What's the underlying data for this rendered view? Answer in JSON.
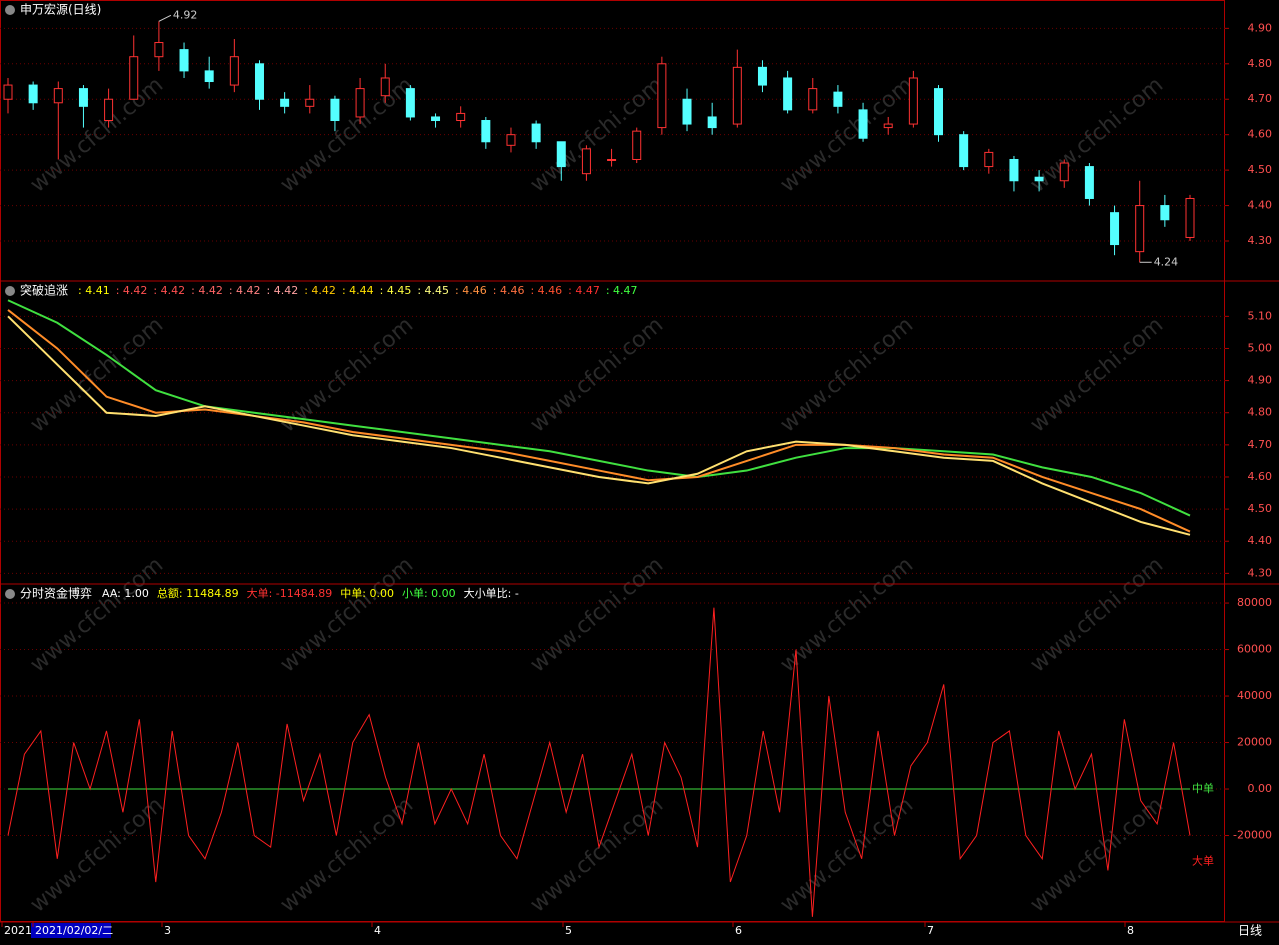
{
  "chart_data": [
    {
      "type": "candlestick",
      "title": "申万宏源(日线)",
      "open": [
        4.7,
        4.74,
        4.69,
        4.73,
        4.64,
        4.7,
        4.82,
        4.84,
        4.78,
        4.74,
        4.8,
        4.7,
        4.68,
        4.7,
        4.65,
        4.71,
        4.73,
        4.65,
        4.64,
        4.64,
        4.57,
        4.63,
        4.58,
        4.49,
        4.53,
        4.53,
        4.62,
        4.7,
        4.65,
        4.63,
        4.79,
        4.76,
        4.67,
        4.72,
        4.67,
        4.62,
        4.63,
        4.73,
        4.6,
        4.51,
        4.53,
        4.48,
        4.47,
        4.51,
        4.38,
        4.27,
        4.4,
        4.31
      ],
      "high": [
        4.76,
        4.75,
        4.75,
        4.74,
        4.73,
        4.88,
        4.92,
        4.86,
        4.82,
        4.87,
        4.81,
        4.72,
        4.74,
        4.71,
        4.76,
        4.8,
        4.74,
        4.66,
        4.68,
        4.65,
        4.62,
        4.64,
        4.58,
        4.57,
        4.56,
        4.62,
        4.82,
        4.73,
        4.69,
        4.84,
        4.81,
        4.78,
        4.76,
        4.74,
        4.69,
        4.65,
        4.78,
        4.74,
        4.61,
        4.56,
        4.54,
        4.5,
        4.53,
        4.52,
        4.4,
        4.47,
        4.43,
        4.43
      ],
      "low": [
        4.66,
        4.67,
        4.53,
        4.62,
        4.62,
        4.7,
        4.78,
        4.76,
        4.73,
        4.72,
        4.67,
        4.66,
        4.66,
        4.61,
        4.63,
        4.69,
        4.64,
        4.62,
        4.62,
        4.56,
        4.55,
        4.56,
        4.47,
        4.47,
        4.51,
        4.52,
        4.6,
        4.61,
        4.6,
        4.62,
        4.72,
        4.66,
        4.66,
        4.66,
        4.58,
        4.6,
        4.62,
        4.58,
        4.5,
        4.49,
        4.44,
        4.44,
        4.45,
        4.4,
        4.26,
        4.24,
        4.34,
        4.3
      ],
      "close": [
        4.74,
        4.69,
        4.73,
        4.68,
        4.7,
        4.82,
        4.86,
        4.78,
        4.75,
        4.82,
        4.7,
        4.68,
        4.7,
        4.64,
        4.73,
        4.76,
        4.65,
        4.64,
        4.66,
        4.58,
        4.6,
        4.58,
        4.51,
        4.56,
        4.53,
        4.61,
        4.8,
        4.63,
        4.62,
        4.79,
        4.74,
        4.67,
        4.73,
        4.68,
        4.59,
        4.63,
        4.76,
        4.6,
        4.51,
        4.55,
        4.47,
        4.47,
        4.52,
        4.42,
        4.29,
        4.4,
        4.36,
        4.42
      ],
      "up_color": "#ff3232",
      "down_color": "#54ffff",
      "max_label": {
        "value": 4.92,
        "label": "4.92"
      },
      "min_label": {
        "value": 4.24,
        "label": "4.24"
      },
      "ylim": [
        4.19,
        4.98
      ],
      "yticks": [
        {
          "value": 4.9,
          "label": "4.90"
        },
        {
          "value": 4.8,
          "label": "4.80"
        },
        {
          "value": 4.7,
          "label": "4.70"
        },
        {
          "value": 4.6,
          "label": "4.60"
        },
        {
          "value": 4.5,
          "label": "4.50"
        },
        {
          "value": 4.4,
          "label": "4.40"
        },
        {
          "value": 4.3,
          "label": "4.30"
        }
      ],
      "grid": true
    },
    {
      "type": "line",
      "title": "突破追涨",
      "header_values": [
        4.41,
        4.42,
        4.42,
        4.42,
        4.42,
        4.42,
        4.42,
        4.44,
        4.45,
        4.45,
        4.46,
        4.46,
        4.46,
        4.47,
        4.47
      ],
      "value_labels": [
        ": 4.41",
        ": 4.42",
        ": 4.42",
        ": 4.42",
        ": 4.42",
        ": 4.42",
        ": 4.42",
        ": 4.44",
        ": 4.45",
        ": 4.45",
        ": 4.46",
        ": 4.46",
        ": 4.46",
        ": 4.47",
        ": 4.47"
      ],
      "header_colors": [
        "#ffff00",
        "#ff5050",
        "#ff5050",
        "#ff6464",
        "#ff8080",
        "#ffa0a0",
        "#ffc800",
        "#ffe000",
        "#ffff40",
        "#ffff80",
        "#ff9040",
        "#ff7040",
        "#ff5030",
        "#ff3030",
        "#40ff40"
      ],
      "series": [
        {
          "color": "#40e040",
          "values": [
            5.15,
            5.08,
            4.98,
            4.87,
            4.82,
            4.8,
            4.78,
            4.76,
            4.74,
            4.72,
            4.7,
            4.68,
            4.65,
            4.62,
            4.6,
            4.62,
            4.66,
            4.69,
            4.69,
            4.68,
            4.67,
            4.63,
            4.6,
            4.55,
            4.48
          ]
        },
        {
          "color": "#ff8c28",
          "values": [
            5.12,
            5.0,
            4.85,
            4.8,
            4.81,
            4.79,
            4.77,
            4.74,
            4.72,
            4.7,
            4.68,
            4.65,
            4.62,
            4.59,
            4.6,
            4.65,
            4.7,
            4.7,
            4.69,
            4.67,
            4.66,
            4.6,
            4.55,
            4.5,
            4.43
          ]
        },
        {
          "color": "#ffe070",
          "values": [
            5.1,
            4.95,
            4.8,
            4.79,
            4.82,
            4.79,
            4.76,
            4.73,
            4.71,
            4.69,
            4.66,
            4.63,
            4.6,
            4.58,
            4.61,
            4.68,
            4.71,
            4.7,
            4.68,
            4.66,
            4.65,
            4.58,
            4.52,
            4.46,
            4.42
          ]
        }
      ],
      "ylim": [
        4.27,
        5.21
      ],
      "yticks": [
        {
          "value": 5.1,
          "label": "5.10"
        },
        {
          "value": 5.0,
          "label": "5.00"
        },
        {
          "value": 4.9,
          "label": "4.90"
        },
        {
          "value": 4.8,
          "label": "4.80"
        },
        {
          "value": 4.7,
          "label": "4.70"
        },
        {
          "value": 4.6,
          "label": "4.60"
        },
        {
          "value": 4.5,
          "label": "4.50"
        },
        {
          "value": 4.4,
          "label": "4.40"
        },
        {
          "value": 4.3,
          "label": "4.30"
        }
      ],
      "grid": true
    },
    {
      "type": "line",
      "title": "分时资金博弈",
      "stats": [
        "AA: 1.00",
        "总额: 11484.89",
        "大单: -11484.89",
        "中单: 0.00",
        "小单: 0.00",
        "大小单比: -"
      ],
      "stats_colors": [
        "#ffffff",
        "#ffff00",
        "#ff3232",
        "#ffff00",
        "#40ff40",
        "#ffffff"
      ],
      "series": [
        {
          "name": "中单",
          "color": "#40e040",
          "values": [
            0,
            0
          ]
        },
        {
          "name": "大单",
          "color": "#ff2020",
          "values": [
            -20000,
            15000,
            25000,
            -30000,
            20000,
            0,
            25000,
            -10000,
            30000,
            -40000,
            25000,
            -20000,
            -30000,
            -10000,
            20000,
            -20000,
            -25000,
            28000,
            -5000,
            15000,
            -20000,
            20000,
            32000,
            5000,
            -15000,
            20000,
            -15000,
            0,
            -15000,
            15000,
            -20000,
            -30000,
            -5000,
            20000,
            -10000,
            15000,
            -25000,
            -5000,
            15000,
            -20000,
            20000,
            5000,
            -25000,
            78000,
            -40000,
            -20000,
            25000,
            -10000,
            60000,
            -55000,
            40000,
            -10000,
            -30000,
            25000,
            -20000,
            10000,
            20000,
            45000,
            -30000,
            -20000,
            20000,
            25000,
            -20000,
            -30000,
            25000,
            0,
            15000,
            -35000,
            30000,
            -5000,
            -15000,
            20000,
            -20000
          ]
        }
      ],
      "ylim": [
        -57200,
        88200
      ],
      "yticks": [
        80000,
        60000,
        40000,
        20000,
        {
          "value": 0,
          "label": "0.00"
        },
        -20000
      ],
      "grid": true
    }
  ],
  "x_axis_labels": [
    "2021",
    "2021/02/02/二",
    "3",
    "4",
    "5",
    "6",
    "7",
    "8"
  ],
  "period": "日线",
  "watermark": "www.cfchi.com"
}
